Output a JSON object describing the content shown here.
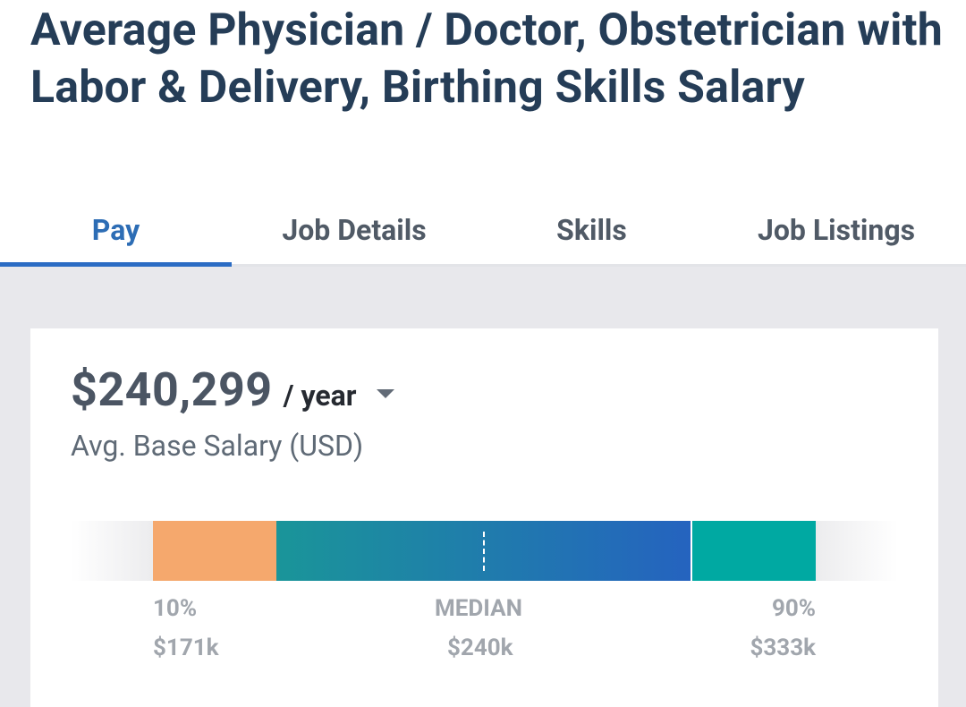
{
  "header": {
    "title": "Average Physician / Doctor, Obstetrician with Labor & Delivery, Birthing Skills Salary"
  },
  "tabs": [
    {
      "label": "Pay",
      "active": true
    },
    {
      "label": "Job Details",
      "active": false
    },
    {
      "label": "Skills",
      "active": false
    },
    {
      "label": "Job Listings",
      "active": false
    }
  ],
  "salary": {
    "amount": "$240,299",
    "period": "/ year",
    "caption": "Avg. Base Salary (USD)"
  },
  "range": {
    "low_label": "10%",
    "low_value": "$171k",
    "median_label": "MEDIAN",
    "median_value": "$240k",
    "high_label": "90%",
    "high_value": "$333k"
  },
  "colors": {
    "title": "#253d57",
    "active_tab": "#2d6db5",
    "low_segment": "#f5a86d",
    "mid_segment_start": "#1a9599",
    "mid_segment_end": "#2563bf",
    "high_segment": "#00a9a2"
  },
  "icons": {
    "period_dropdown": "caret-down-icon"
  }
}
